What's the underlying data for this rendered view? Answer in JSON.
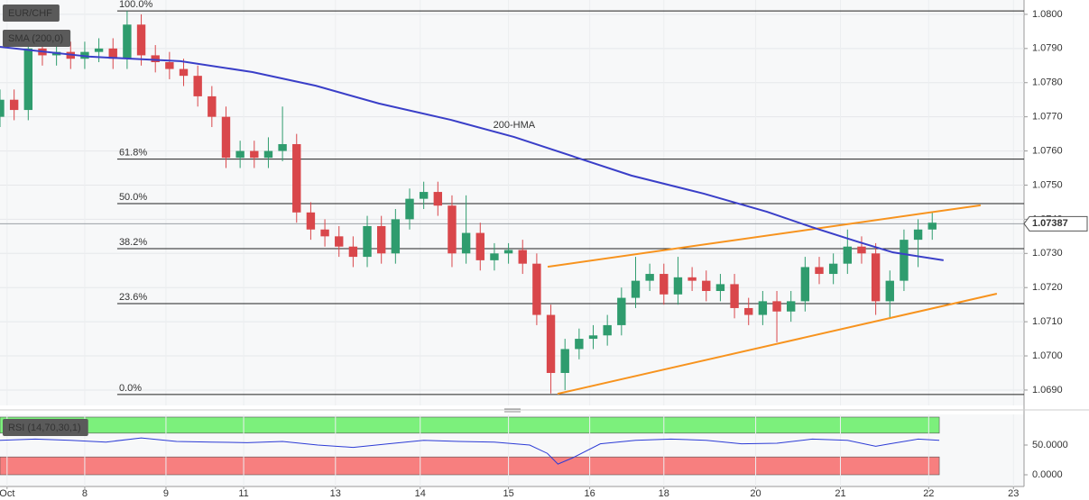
{
  "chart_data": [
    {
      "type": "candlestick",
      "title": "EUR/CHF",
      "indicator_label": "SMA (200,0)",
      "xlim": [
        0,
        290
      ],
      "ylim": [
        1.06855,
        1.08042
      ],
      "yticks": [
        {
          "value": 1.069,
          "label": "1.0690"
        },
        {
          "value": 1.07,
          "label": "1.0700"
        },
        {
          "value": 1.071,
          "label": "1.0710"
        },
        {
          "value": 1.072,
          "label": "1.0720"
        },
        {
          "value": 1.073,
          "label": "1.0730"
        },
        {
          "value": 1.074,
          "label": "1.0740"
        },
        {
          "value": 1.075,
          "label": "1.0750"
        },
        {
          "value": 1.076,
          "label": "1.0760"
        },
        {
          "value": 1.077,
          "label": "1.0770"
        },
        {
          "value": 1.078,
          "label": "1.0780"
        },
        {
          "value": 1.079,
          "label": "1.0790"
        },
        {
          "value": 1.08,
          "label": "1.0800"
        }
      ],
      "grid": true,
      "up_color": "#2f9c6e",
      "down_color": "#d9474b",
      "x": [
        0,
        4,
        8,
        12,
        16,
        20,
        24,
        28,
        32,
        36,
        40,
        44,
        48,
        52,
        56,
        60,
        64,
        68,
        72,
        76,
        80,
        84,
        88,
        92,
        96,
        100,
        104,
        108,
        112,
        116,
        120,
        124,
        128,
        132,
        136,
        140,
        144,
        148,
        152,
        156,
        160,
        164,
        168,
        172,
        176,
        180,
        184,
        188,
        192,
        196,
        200,
        204,
        208,
        212,
        216,
        220,
        224,
        228,
        232,
        236,
        240,
        244,
        248,
        252,
        256,
        260,
        264
      ],
      "open": [
        1.077,
        1.0775,
        1.0772,
        1.079,
        1.0788,
        1.0789,
        1.0787,
        1.0789,
        1.079,
        1.0787,
        1.0797,
        1.0788,
        1.0786,
        1.0784,
        1.0782,
        1.0776,
        1.077,
        1.0758,
        1.076,
        1.0758,
        1.076,
        1.0762,
        1.0742,
        1.0737,
        1.0735,
        1.0732,
        1.0729,
        1.0738,
        1.073,
        1.074,
        1.0746,
        1.0748,
        1.0744,
        1.073,
        1.0736,
        1.0728,
        1.073,
        1.0731,
        1.0727,
        1.0712,
        1.0695,
        1.0702,
        1.0705,
        1.0706,
        1.0709,
        1.0717,
        1.0722,
        1.0724,
        1.0718,
        1.0723,
        1.0722,
        1.0719,
        1.0721,
        1.0714,
        1.0712,
        1.0716,
        1.0713,
        1.0716,
        1.0726,
        1.0724,
        1.0727,
        1.0732,
        1.073,
        1.0716,
        1.0722,
        1.0734,
        1.0737
      ],
      "high": [
        1.0778,
        1.0778,
        1.0793,
        1.0793,
        1.0792,
        1.0792,
        1.0792,
        1.0793,
        1.0793,
        1.0801,
        1.08,
        1.0791,
        1.0789,
        1.0787,
        1.0785,
        1.0779,
        1.0773,
        1.0763,
        1.0763,
        1.0764,
        1.0773,
        1.0765,
        1.0745,
        1.074,
        1.0738,
        1.0735,
        1.0741,
        1.0741,
        1.0743,
        1.0749,
        1.0751,
        1.0751,
        1.0747,
        1.0747,
        1.0739,
        1.0733,
        1.0733,
        1.0734,
        1.073,
        1.0715,
        1.0705,
        1.0708,
        1.0709,
        1.0712,
        1.072,
        1.0729,
        1.0727,
        1.0727,
        1.0729,
        1.0726,
        1.0725,
        1.0724,
        1.0724,
        1.0717,
        1.0719,
        1.0719,
        1.0719,
        1.0729,
        1.0729,
        1.073,
        1.0737,
        1.0735,
        1.0733,
        1.0725,
        1.0737,
        1.074,
        1.0742
      ],
      "low": [
        1.0767,
        1.0769,
        1.0769,
        1.0785,
        1.0785,
        1.0784,
        1.0784,
        1.0786,
        1.0784,
        1.0784,
        1.0785,
        1.0783,
        1.0781,
        1.0779,
        1.0773,
        1.0767,
        1.0755,
        1.0755,
        1.0755,
        1.0755,
        1.0757,
        1.0739,
        1.0734,
        1.0732,
        1.0729,
        1.0726,
        1.0726,
        1.0727,
        1.0727,
        1.0737,
        1.0743,
        1.0741,
        1.0726,
        1.0727,
        1.0725,
        1.0725,
        1.0727,
        1.0724,
        1.0709,
        1.0689,
        1.069,
        1.0699,
        1.0702,
        1.0703,
        1.0706,
        1.0714,
        1.0719,
        1.0715,
        1.0715,
        1.0719,
        1.0716,
        1.0716,
        1.0711,
        1.0709,
        1.0709,
        1.0704,
        1.071,
        1.0713,
        1.0721,
        1.0721,
        1.0724,
        1.0727,
        1.0712,
        1.0711,
        1.0719,
        1.0726,
        1.0734
      ],
      "close": [
        1.0775,
        1.0772,
        1.079,
        1.0788,
        1.0789,
        1.0787,
        1.0789,
        1.079,
        1.0787,
        1.0797,
        1.0788,
        1.0786,
        1.0784,
        1.0782,
        1.0776,
        1.077,
        1.0758,
        1.076,
        1.0758,
        1.076,
        1.0762,
        1.0742,
        1.0737,
        1.0735,
        1.0732,
        1.0729,
        1.0738,
        1.073,
        1.074,
        1.0746,
        1.0748,
        1.0744,
        1.073,
        1.0736,
        1.0728,
        1.073,
        1.0731,
        1.0727,
        1.0712,
        1.0695,
        1.0702,
        1.0705,
        1.0706,
        1.0709,
        1.0717,
        1.0722,
        1.0724,
        1.0718,
        1.0723,
        1.0722,
        1.0719,
        1.0721,
        1.0714,
        1.0712,
        1.0716,
        1.0713,
        1.0716,
        1.0726,
        1.0724,
        1.0727,
        1.0732,
        1.073,
        1.0716,
        1.0722,
        1.0734,
        1.0737,
        1.0739
      ],
      "last_price": 1.07387,
      "hma": {
        "name": "200-HMA",
        "color": "#3a3fc8",
        "x": [
          0,
          25.5,
          51.1,
          71.5,
          89.4,
          107.3,
          127.7,
          145.6,
          163.5,
          178.8,
          199.3,
          217.2,
          229.9,
          242.7,
          252.9,
          267.2
        ],
        "values": [
          1.07905,
          1.07876,
          1.07863,
          1.07831,
          1.07791,
          1.07739,
          1.07691,
          1.07641,
          1.0758,
          1.07528,
          1.07475,
          1.07422,
          1.07377,
          1.07335,
          1.07303,
          1.0728
        ]
      },
      "trendlines": [
        {
          "color": "#f7931e",
          "x": [
            155.1,
            277.7
          ],
          "values": [
            1.07261,
            1.07441
          ]
        },
        {
          "color": "#f7931e",
          "x": [
            157.9,
            282.3
          ],
          "values": [
            1.06889,
            1.07182
          ]
        }
      ],
      "fib_start_x": 33.2,
      "fib_levels": [
        {
          "label": "100.0%",
          "value": 1.0801
        },
        {
          "label": "61.8%",
          "value": 1.07576
        },
        {
          "label": "50.0%",
          "value": 1.07446
        },
        {
          "label": "38.2%",
          "value": 1.07314
        },
        {
          "label": "23.6%",
          "value": 1.07153
        },
        {
          "label": "0.0%",
          "value": 1.06887
        }
      ]
    },
    {
      "type": "line",
      "title": "RSI (14,70,30,1)",
      "color": "#2c3bd6",
      "xlim": [
        0,
        290
      ],
      "xticks": [
        {
          "value": 2,
          "label": "Oct"
        },
        {
          "value": 24,
          "label": "8"
        },
        {
          "value": 47,
          "label": "9"
        },
        {
          "value": 69,
          "label": "11"
        },
        {
          "value": 95,
          "label": "13"
        },
        {
          "value": 119,
          "label": "14"
        },
        {
          "value": 144,
          "label": "15"
        },
        {
          "value": 167,
          "label": "16"
        },
        {
          "value": 188,
          "label": "18"
        },
        {
          "value": 214,
          "label": "20"
        },
        {
          "value": 238,
          "label": "21"
        },
        {
          "value": 263,
          "label": "22"
        },
        {
          "value": 287,
          "label": "23"
        }
      ],
      "ylim": [
        -19.7,
        101.5
      ],
      "yticks": [
        {
          "value": 0,
          "label": "0.0000"
        },
        {
          "value": 50,
          "label": "50.0000"
        }
      ],
      "overbought_level": 70,
      "oversold_level": 30,
      "overbought_color": "#7cf07c",
      "oversold_color": "#f77f7f",
      "x": [
        0,
        10,
        20,
        30,
        40,
        50,
        60,
        70,
        80,
        90,
        100,
        110,
        120,
        130,
        140,
        150,
        155,
        158,
        162,
        170,
        180,
        190,
        200,
        210,
        220,
        230,
        240,
        248,
        252,
        260,
        266
      ],
      "values": [
        58,
        60,
        58,
        55,
        62,
        56,
        55,
        54,
        56,
        50,
        46,
        52,
        58,
        56,
        55,
        50,
        36,
        18,
        28,
        52,
        58,
        60,
        58,
        52,
        53,
        60,
        58,
        48,
        52,
        60,
        58
      ]
    }
  ]
}
